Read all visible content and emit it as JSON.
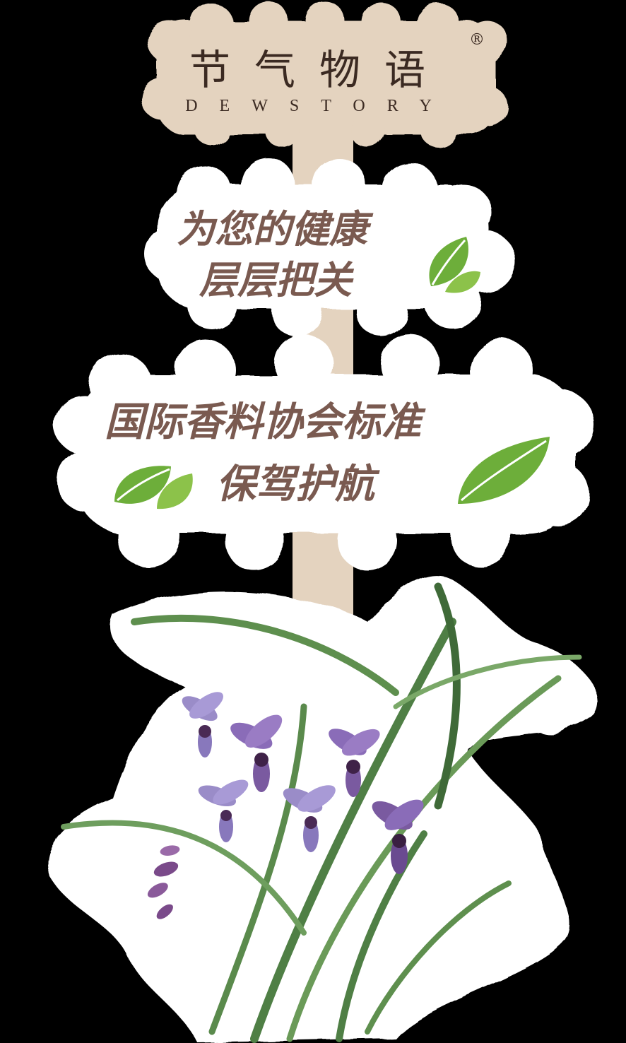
{
  "brand": {
    "name_cn": "节气物语",
    "name_en": "DEWSTORY",
    "registered_mark": "®"
  },
  "slogans": {
    "first": [
      "为您的健康",
      "层层把关"
    ],
    "second": [
      "国际香料协会标准",
      "保驾护航"
    ]
  },
  "colors": {
    "background": "#000000",
    "signpost": "#e4d3bf",
    "bubble": "#ffffff",
    "slogan_text": "#7a5a50",
    "logo_text": "#3b2a22",
    "leaf_green": "#6dae3a",
    "orchid_purple": "#7a5aa0"
  },
  "icons": [
    "leaf-icon",
    "orchid-illustration"
  ]
}
